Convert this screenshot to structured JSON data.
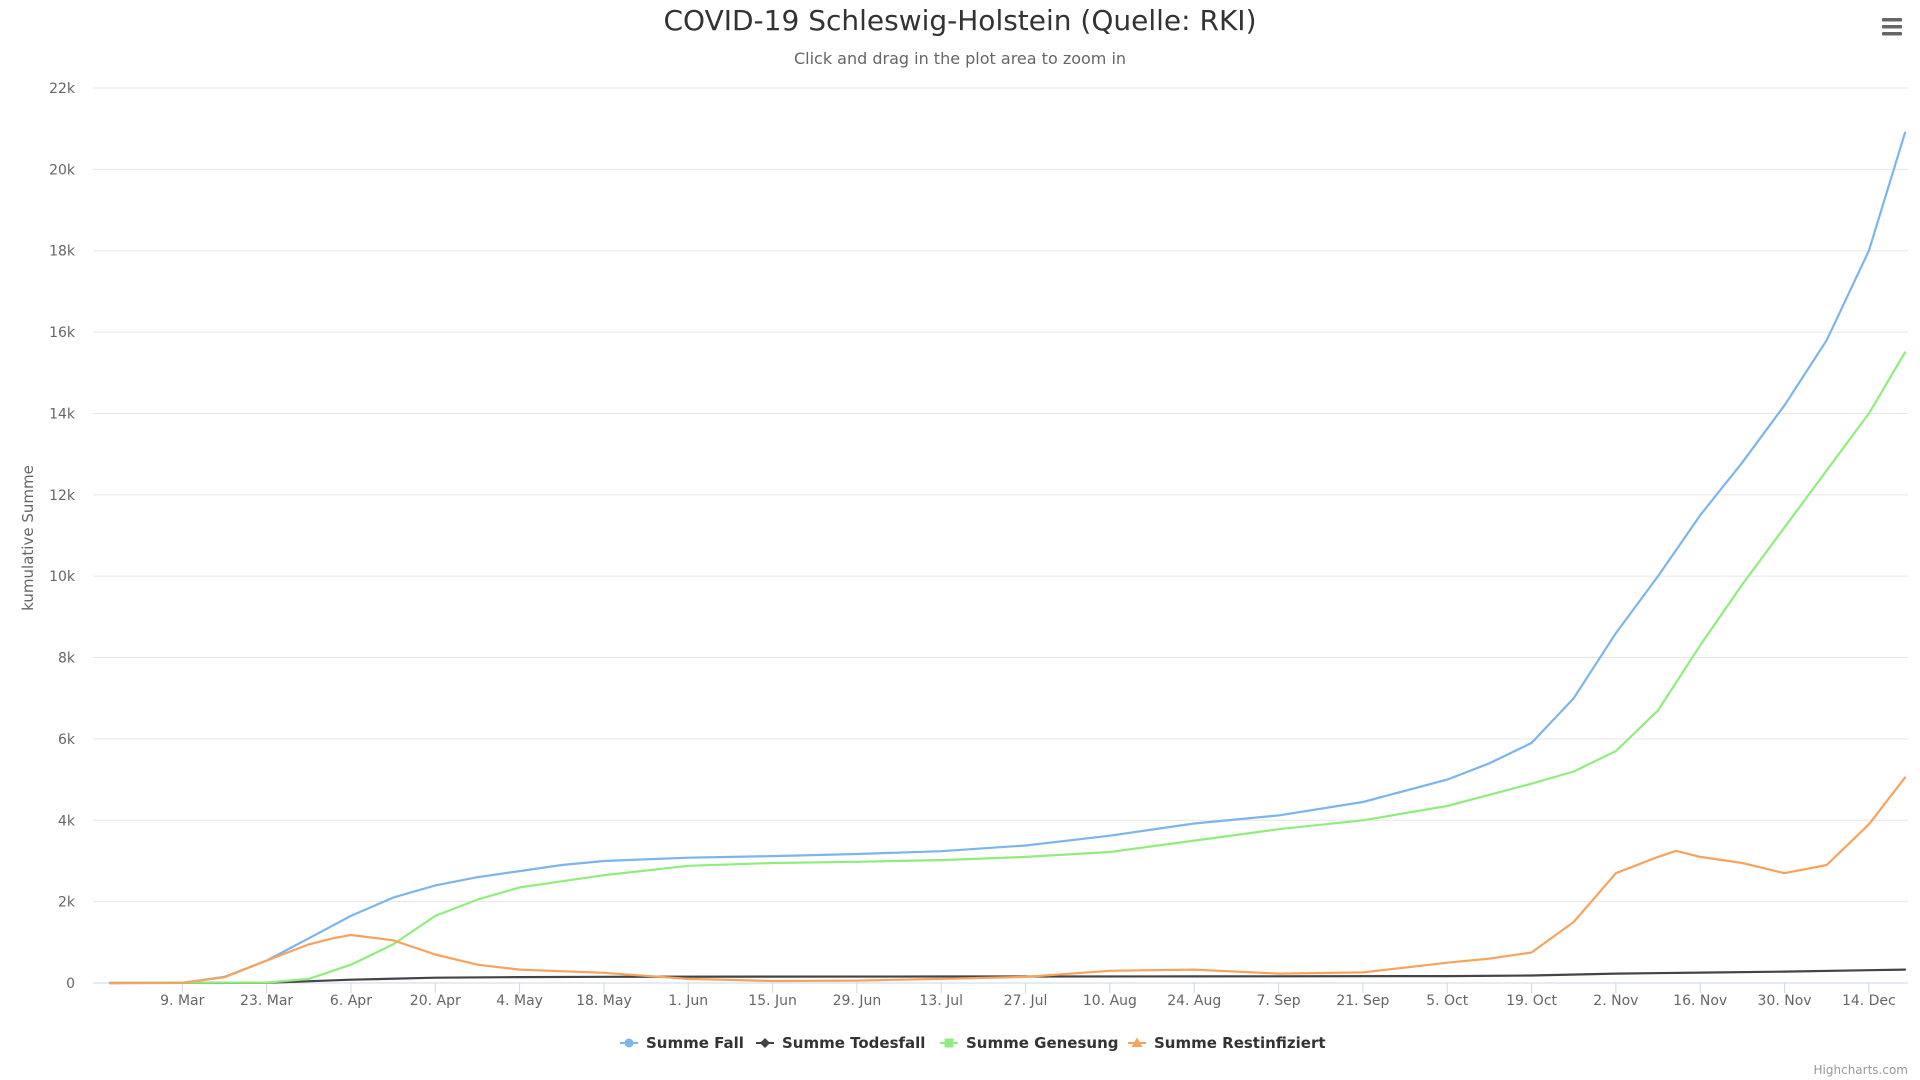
{
  "credits": "Highcharts.com",
  "menu_icon": "hamburger-menu-icon",
  "chart_data": {
    "type": "line",
    "title": "COVID-19 Schleswig-Holstein (Quelle: RKI)",
    "subtitle": "Click and drag in the plot area to zoom in",
    "xlabel": "",
    "ylabel": "kumulative Summe",
    "ylim": [
      0,
      22000
    ],
    "y_ticks": [
      "0",
      "2k",
      "4k",
      "6k",
      "8k",
      "10k",
      "12k",
      "14k",
      "16k",
      "18k",
      "20k",
      "22k"
    ],
    "x_range": [
      "2020-02-26",
      "2020-12-20"
    ],
    "x_ticks": [
      {
        "date": "2020-03-09",
        "label": "9. Mar"
      },
      {
        "date": "2020-03-23",
        "label": "23. Mar"
      },
      {
        "date": "2020-04-06",
        "label": "6. Apr"
      },
      {
        "date": "2020-04-20",
        "label": "20. Apr"
      },
      {
        "date": "2020-05-04",
        "label": "4. May"
      },
      {
        "date": "2020-05-18",
        "label": "18. May"
      },
      {
        "date": "2020-06-01",
        "label": "1. Jun"
      },
      {
        "date": "2020-06-15",
        "label": "15. Jun"
      },
      {
        "date": "2020-06-29",
        "label": "29. Jun"
      },
      {
        "date": "2020-07-13",
        "label": "13. Jul"
      },
      {
        "date": "2020-07-27",
        "label": "27. Jul"
      },
      {
        "date": "2020-08-10",
        "label": "10. Aug"
      },
      {
        "date": "2020-08-24",
        "label": "24. Aug"
      },
      {
        "date": "2020-09-07",
        "label": "7. Sep"
      },
      {
        "date": "2020-09-21",
        "label": "21. Sep"
      },
      {
        "date": "2020-10-05",
        "label": "5. Oct"
      },
      {
        "date": "2020-10-19",
        "label": "19. Oct"
      },
      {
        "date": "2020-11-02",
        "label": "2. Nov"
      },
      {
        "date": "2020-11-16",
        "label": "16. Nov"
      },
      {
        "date": "2020-11-30",
        "label": "30. Nov"
      },
      {
        "date": "2020-12-14",
        "label": "14. Dec"
      }
    ],
    "grid": true,
    "legend_position": "bottom-center",
    "series": [
      {
        "name": "Summe Fall",
        "color": "#7cb5ec",
        "marker": "circle",
        "points": [
          [
            "2020-02-26",
            0
          ],
          [
            "2020-03-09",
            5
          ],
          [
            "2020-03-16",
            150
          ],
          [
            "2020-03-23",
            550
          ],
          [
            "2020-03-30",
            1100
          ],
          [
            "2020-04-06",
            1650
          ],
          [
            "2020-04-13",
            2100
          ],
          [
            "2020-04-20",
            2400
          ],
          [
            "2020-04-27",
            2600
          ],
          [
            "2020-05-04",
            2750
          ],
          [
            "2020-05-11",
            2900
          ],
          [
            "2020-05-18",
            3000
          ],
          [
            "2020-06-01",
            3080
          ],
          [
            "2020-06-15",
            3120
          ],
          [
            "2020-06-29",
            3170
          ],
          [
            "2020-07-13",
            3240
          ],
          [
            "2020-07-27",
            3380
          ],
          [
            "2020-08-10",
            3620
          ],
          [
            "2020-08-24",
            3920
          ],
          [
            "2020-09-07",
            4120
          ],
          [
            "2020-09-21",
            4450
          ],
          [
            "2020-10-05",
            5000
          ],
          [
            "2020-10-12",
            5400
          ],
          [
            "2020-10-19",
            5900
          ],
          [
            "2020-10-26",
            7000
          ],
          [
            "2020-11-02",
            8600
          ],
          [
            "2020-11-09",
            10000
          ],
          [
            "2020-11-16",
            11500
          ],
          [
            "2020-11-23",
            12800
          ],
          [
            "2020-11-30",
            14200
          ],
          [
            "2020-12-07",
            15800
          ],
          [
            "2020-12-14",
            18000
          ],
          [
            "2020-12-20",
            20900
          ]
        ]
      },
      {
        "name": "Summe Todesfall",
        "color": "#434348",
        "marker": "diamond",
        "points": [
          [
            "2020-02-26",
            0
          ],
          [
            "2020-03-23",
            5
          ],
          [
            "2020-04-06",
            80
          ],
          [
            "2020-04-20",
            130
          ],
          [
            "2020-05-04",
            145
          ],
          [
            "2020-05-18",
            152
          ],
          [
            "2020-07-13",
            160
          ],
          [
            "2020-08-24",
            163
          ],
          [
            "2020-10-05",
            170
          ],
          [
            "2020-10-19",
            185
          ],
          [
            "2020-11-02",
            230
          ],
          [
            "2020-11-16",
            255
          ],
          [
            "2020-11-30",
            280
          ],
          [
            "2020-12-14",
            315
          ],
          [
            "2020-12-20",
            330
          ]
        ]
      },
      {
        "name": "Summe Genesung",
        "color": "#90ed7d",
        "marker": "square",
        "points": [
          [
            "2020-02-26",
            0
          ],
          [
            "2020-03-23",
            10
          ],
          [
            "2020-03-30",
            100
          ],
          [
            "2020-04-06",
            450
          ],
          [
            "2020-04-13",
            950
          ],
          [
            "2020-04-20",
            1650
          ],
          [
            "2020-04-27",
            2050
          ],
          [
            "2020-05-04",
            2350
          ],
          [
            "2020-05-11",
            2500
          ],
          [
            "2020-05-18",
            2650
          ],
          [
            "2020-06-01",
            2880
          ],
          [
            "2020-06-15",
            2950
          ],
          [
            "2020-06-29",
            2980
          ],
          [
            "2020-07-13",
            3020
          ],
          [
            "2020-07-27",
            3100
          ],
          [
            "2020-08-10",
            3220
          ],
          [
            "2020-08-24",
            3500
          ],
          [
            "2020-09-07",
            3780
          ],
          [
            "2020-09-21",
            4000
          ],
          [
            "2020-10-05",
            4350
          ],
          [
            "2020-10-19",
            4900
          ],
          [
            "2020-10-26",
            5200
          ],
          [
            "2020-11-02",
            5700
          ],
          [
            "2020-11-09",
            6700
          ],
          [
            "2020-11-16",
            8300
          ],
          [
            "2020-11-23",
            9800
          ],
          [
            "2020-11-30",
            11200
          ],
          [
            "2020-12-07",
            12600
          ],
          [
            "2020-12-14",
            14000
          ],
          [
            "2020-12-20",
            15500
          ]
        ]
      },
      {
        "name": "Summe Restinfiziert",
        "color": "#f7a35c",
        "marker": "triangle",
        "points": [
          [
            "2020-02-26",
            0
          ],
          [
            "2020-03-09",
            5
          ],
          [
            "2020-03-16",
            140
          ],
          [
            "2020-03-23",
            550
          ],
          [
            "2020-03-30",
            950
          ],
          [
            "2020-04-03",
            1100
          ],
          [
            "2020-04-06",
            1180
          ],
          [
            "2020-04-13",
            1050
          ],
          [
            "2020-04-20",
            700
          ],
          [
            "2020-04-27",
            450
          ],
          [
            "2020-05-04",
            330
          ],
          [
            "2020-05-18",
            250
          ],
          [
            "2020-06-01",
            100
          ],
          [
            "2020-06-15",
            50
          ],
          [
            "2020-06-29",
            60
          ],
          [
            "2020-07-13",
            100
          ],
          [
            "2020-07-27",
            150
          ],
          [
            "2020-08-10",
            300
          ],
          [
            "2020-08-24",
            330
          ],
          [
            "2020-09-07",
            230
          ],
          [
            "2020-09-21",
            260
          ],
          [
            "2020-10-05",
            500
          ],
          [
            "2020-10-12",
            600
          ],
          [
            "2020-10-19",
            750
          ],
          [
            "2020-10-26",
            1500
          ],
          [
            "2020-11-02",
            2700
          ],
          [
            "2020-11-09",
            3100
          ],
          [
            "2020-11-12",
            3250
          ],
          [
            "2020-11-16",
            3100
          ],
          [
            "2020-11-23",
            2950
          ],
          [
            "2020-11-30",
            2700
          ],
          [
            "2020-12-07",
            2900
          ],
          [
            "2020-12-14",
            3900
          ],
          [
            "2020-12-20",
            5050
          ]
        ]
      }
    ]
  }
}
